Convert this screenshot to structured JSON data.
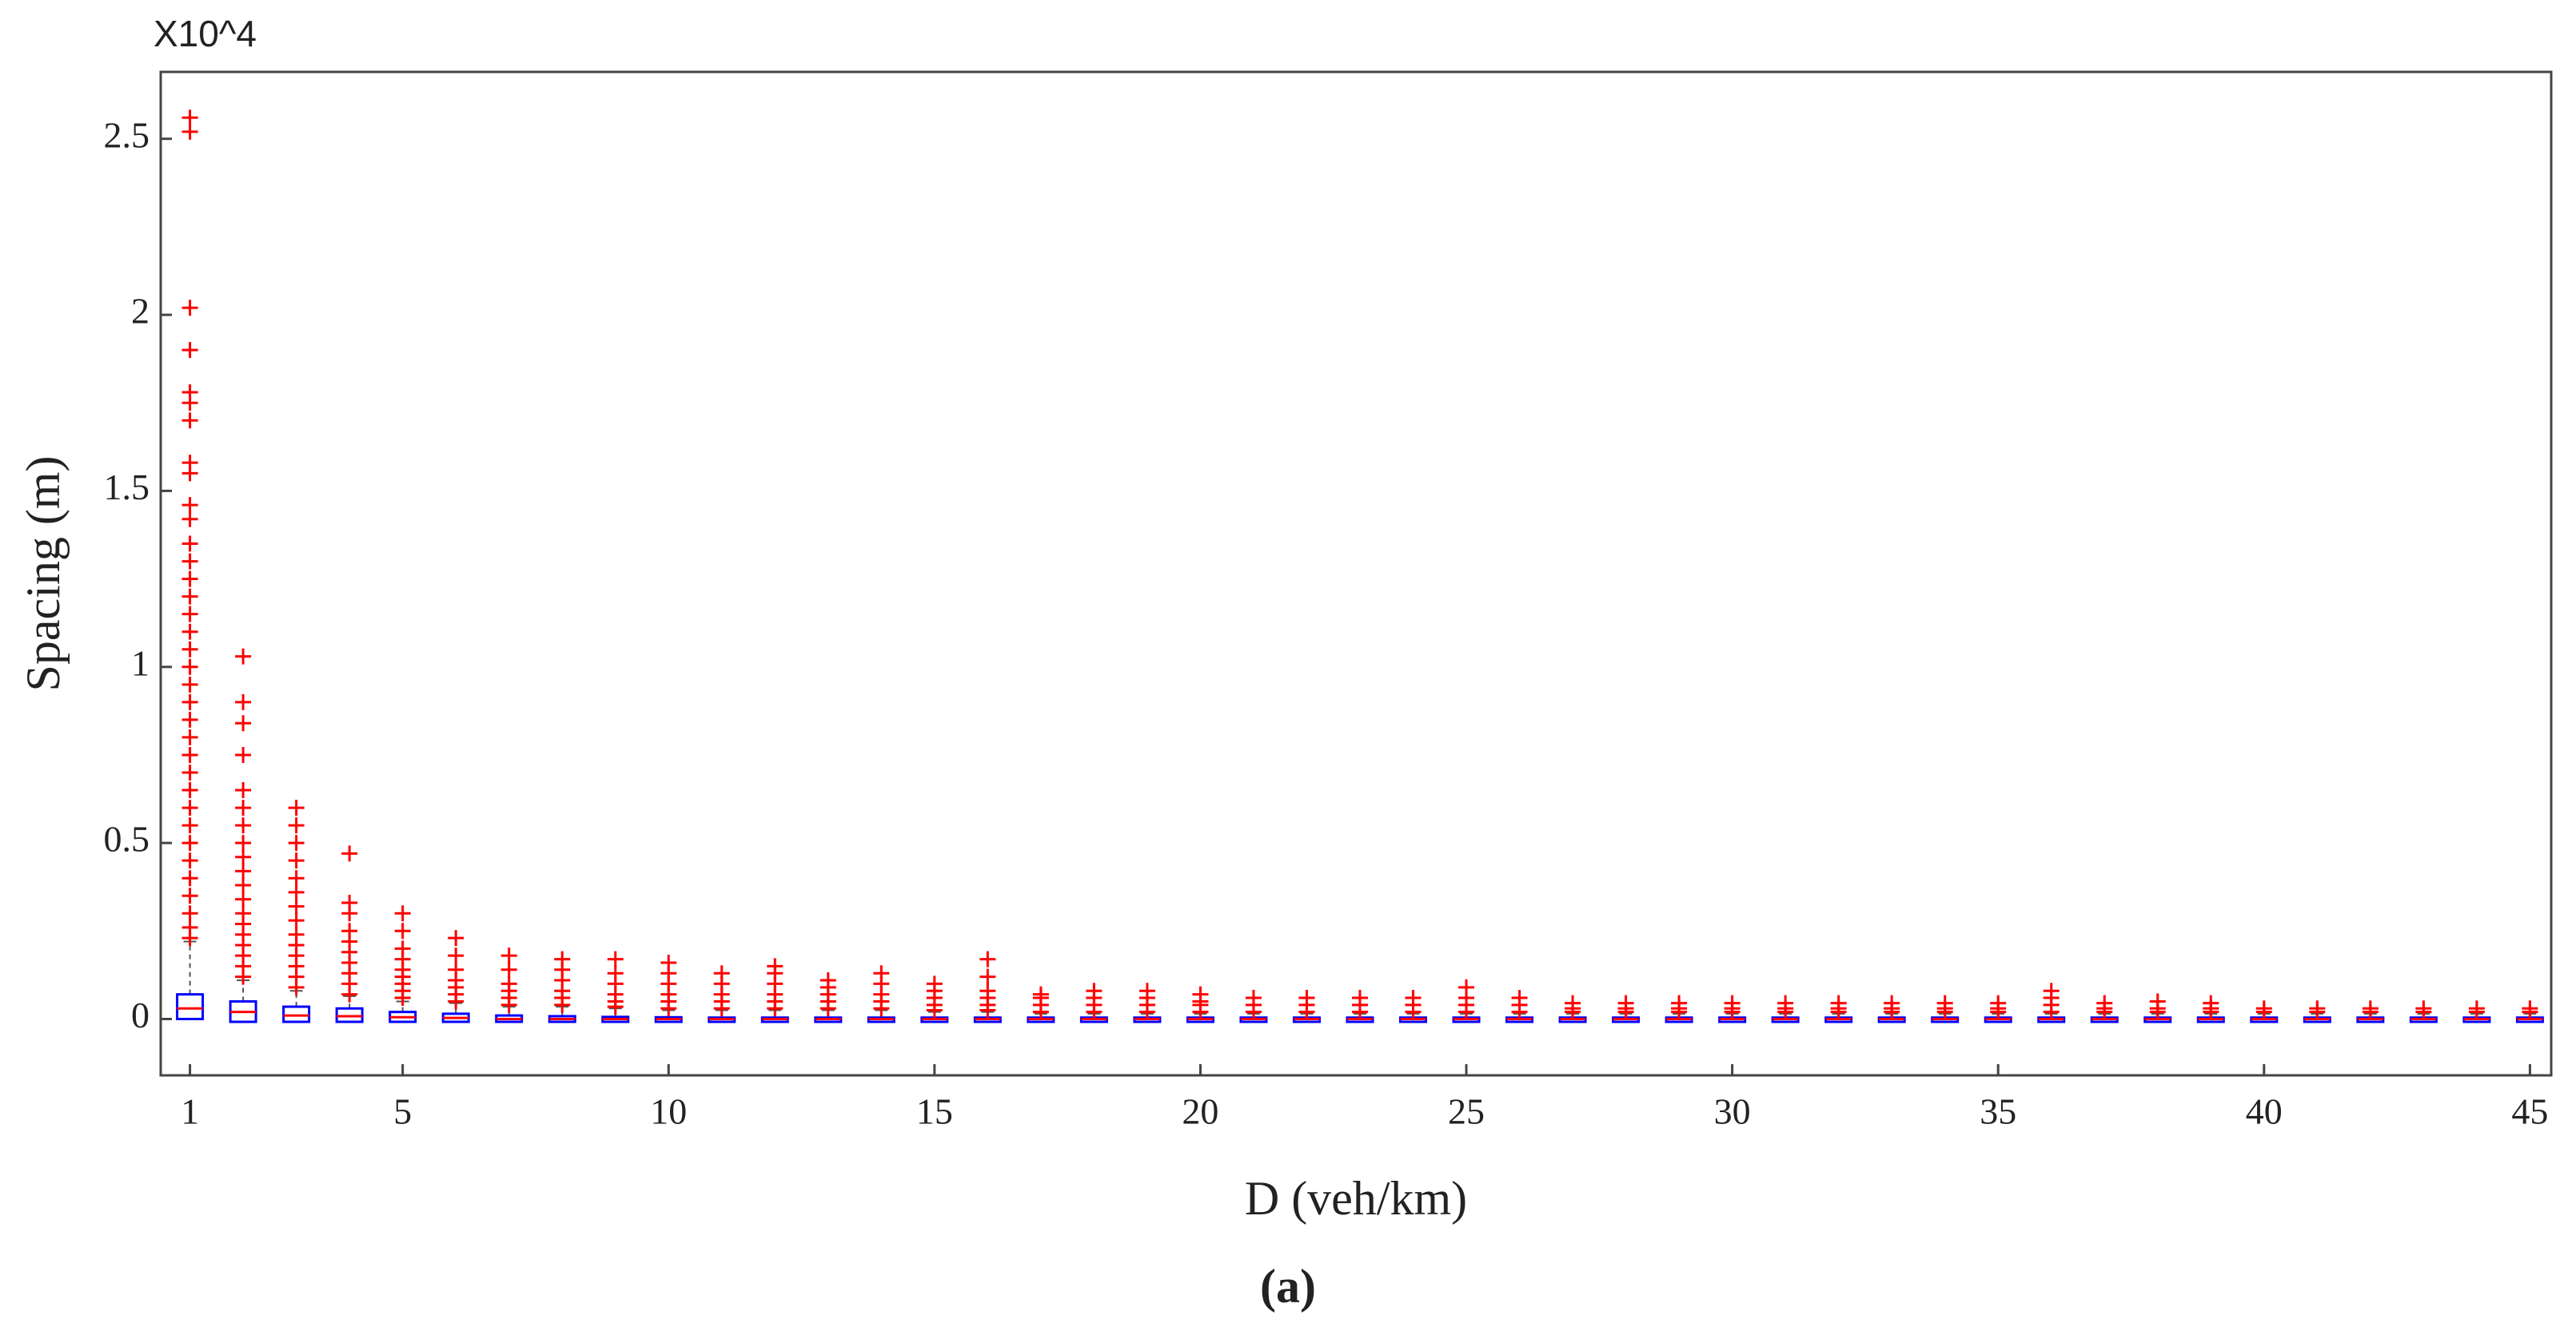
{
  "chart_data": {
    "type": "box",
    "y_multiplier": "X10^4",
    "x_label": "D (veh/km)",
    "y_label": "Spacing (m)",
    "caption": "(a)",
    "box_color": "#0000ff",
    "outlier_color": "#ff0000",
    "whisker_color": "#555555",
    "xlim": [
      0.45,
      45.4
    ],
    "xticks": [
      1,
      5,
      10,
      15,
      20,
      25,
      30,
      35,
      40,
      45
    ],
    "ylim": [
      -0.16,
      2.69
    ],
    "yticks": [
      0,
      0.5,
      1,
      1.5,
      2,
      2.5
    ],
    "x": [
      1,
      2,
      3,
      4,
      5,
      6,
      7,
      8,
      9,
      10,
      11,
      12,
      13,
      14,
      15,
      16,
      17,
      18,
      19,
      20,
      21,
      22,
      23,
      24,
      25,
      26,
      27,
      28,
      29,
      30,
      31,
      32,
      33,
      34,
      35,
      36,
      37,
      38,
      39,
      40,
      41,
      42,
      43,
      44,
      45
    ],
    "q1": [
      0.0,
      -0.008,
      -0.008,
      -0.008,
      -0.008,
      -0.008,
      -0.008,
      -0.008,
      -0.008,
      -0.008,
      -0.008,
      -0.008,
      -0.008,
      -0.008,
      -0.008,
      -0.008,
      -0.008,
      -0.008,
      -0.008,
      -0.008,
      -0.008,
      -0.008,
      -0.008,
      -0.008,
      -0.008,
      -0.008,
      -0.008,
      -0.008,
      -0.008,
      -0.008,
      -0.008,
      -0.008,
      -0.008,
      -0.008,
      -0.008,
      -0.008,
      -0.008,
      -0.008,
      -0.008,
      -0.008,
      -0.008,
      -0.008,
      -0.008,
      -0.008,
      -0.008
    ],
    "median": [
      0.03,
      0.02,
      0.01,
      0.008,
      0.005,
      0.003,
      0.0,
      0.0,
      0.0,
      0.0,
      0.0,
      0.0,
      0.0,
      0.0,
      0.0,
      0.0,
      0.0,
      0.0,
      0.0,
      0.0,
      0.0,
      0.0,
      0.0,
      0.0,
      0.0,
      0.0,
      0.0,
      0.0,
      0.0,
      0.0,
      0.0,
      0.0,
      0.0,
      0.0,
      0.0,
      0.0,
      0.0,
      0.0,
      0.0,
      0.0,
      0.0,
      0.0,
      0.0,
      0.0,
      0.0
    ],
    "q3": [
      0.07,
      0.05,
      0.035,
      0.03,
      0.02,
      0.015,
      0.01,
      0.008,
      0.006,
      0.005,
      0.004,
      0.004,
      0.004,
      0.004,
      0.004,
      0.004,
      0.004,
      0.004,
      0.004,
      0.004,
      0.004,
      0.004,
      0.004,
      0.004,
      0.004,
      0.004,
      0.004,
      0.004,
      0.004,
      0.004,
      0.004,
      0.004,
      0.004,
      0.004,
      0.004,
      0.004,
      0.004,
      0.004,
      0.004,
      0.004,
      0.004,
      0.004,
      0.004,
      0.004,
      0.004
    ],
    "whisker_high": [
      0.22,
      0.11,
      0.08,
      0.065,
      0.05,
      0.045,
      0.035,
      0.035,
      0.03,
      0.025,
      0.025,
      0.025,
      0.025,
      0.025,
      0.02,
      0.02,
      0.015,
      0.015,
      0.015,
      0.015,
      0.015,
      0.015,
      0.015,
      0.015,
      0.015,
      0.015,
      0.015,
      0.015,
      0.015,
      0.015,
      0.015,
      0.015,
      0.015,
      0.015,
      0.015,
      0.015,
      0.015,
      0.015,
      0.015,
      0.015,
      0.015,
      0.015,
      0.015,
      0.015,
      0.015
    ],
    "outliers": [
      [
        0.23,
        0.26,
        0.3,
        0.35,
        0.4,
        0.45,
        0.5,
        0.55,
        0.6,
        0.65,
        0.7,
        0.75,
        0.8,
        0.85,
        0.9,
        0.95,
        1.0,
        1.05,
        1.1,
        1.15,
        1.2,
        1.25,
        1.3,
        1.35,
        1.42,
        1.46,
        1.55,
        1.58,
        1.7,
        1.75,
        1.78,
        1.9,
        2.02,
        2.52,
        2.56
      ],
      [
        0.12,
        0.15,
        0.18,
        0.21,
        0.24,
        0.27,
        0.3,
        0.34,
        0.38,
        0.42,
        0.46,
        0.5,
        0.55,
        0.6,
        0.65,
        0.75,
        0.84,
        0.9,
        1.03
      ],
      [
        0.09,
        0.12,
        0.15,
        0.18,
        0.21,
        0.24,
        0.28,
        0.32,
        0.36,
        0.4,
        0.45,
        0.5,
        0.55,
        0.6
      ],
      [
        0.07,
        0.1,
        0.13,
        0.16,
        0.19,
        0.22,
        0.25,
        0.3,
        0.33,
        0.47
      ],
      [
        0.06,
        0.08,
        0.1,
        0.12,
        0.14,
        0.17,
        0.2,
        0.25,
        0.3
      ],
      [
        0.05,
        0.07,
        0.09,
        0.11,
        0.14,
        0.18,
        0.23
      ],
      [
        0.04,
        0.06,
        0.08,
        0.1,
        0.14,
        0.18
      ],
      [
        0.04,
        0.06,
        0.08,
        0.11,
        0.14,
        0.17
      ],
      [
        0.035,
        0.05,
        0.07,
        0.1,
        0.13,
        0.17
      ],
      [
        0.03,
        0.05,
        0.07,
        0.1,
        0.13,
        0.16
      ],
      [
        0.03,
        0.05,
        0.07,
        0.1,
        0.13
      ],
      [
        0.03,
        0.05,
        0.07,
        0.1,
        0.13,
        0.15
      ],
      [
        0.03,
        0.05,
        0.07,
        0.09,
        0.11
      ],
      [
        0.03,
        0.05,
        0.07,
        0.1,
        0.13
      ],
      [
        0.025,
        0.04,
        0.06,
        0.08,
        0.1
      ],
      [
        0.025,
        0.04,
        0.06,
        0.08,
        0.12,
        0.17
      ],
      [
        0.02,
        0.04,
        0.06,
        0.07
      ],
      [
        0.02,
        0.04,
        0.06,
        0.08
      ],
      [
        0.02,
        0.04,
        0.06,
        0.08
      ],
      [
        0.02,
        0.04,
        0.05,
        0.07
      ],
      [
        0.02,
        0.04,
        0.06
      ],
      [
        0.02,
        0.04,
        0.06
      ],
      [
        0.02,
        0.04,
        0.06
      ],
      [
        0.02,
        0.04,
        0.06
      ],
      [
        0.02,
        0.04,
        0.06,
        0.09
      ],
      [
        0.02,
        0.04,
        0.06
      ],
      [
        0.02,
        0.03,
        0.045
      ],
      [
        0.02,
        0.03,
        0.045
      ],
      [
        0.02,
        0.03,
        0.045
      ],
      [
        0.02,
        0.03,
        0.045
      ],
      [
        0.02,
        0.03,
        0.045
      ],
      [
        0.02,
        0.03,
        0.045
      ],
      [
        0.02,
        0.03,
        0.045
      ],
      [
        0.02,
        0.03,
        0.045
      ],
      [
        0.02,
        0.03,
        0.045
      ],
      [
        0.02,
        0.04,
        0.06,
        0.08
      ],
      [
        0.02,
        0.03,
        0.045
      ],
      [
        0.02,
        0.03,
        0.05
      ],
      [
        0.02,
        0.03,
        0.045
      ],
      [
        0.02,
        0.03
      ],
      [
        0.02,
        0.03
      ],
      [
        0.02,
        0.03
      ],
      [
        0.02,
        0.03
      ],
      [
        0.02,
        0.03
      ],
      [
        0.02,
        0.03
      ]
    ]
  }
}
